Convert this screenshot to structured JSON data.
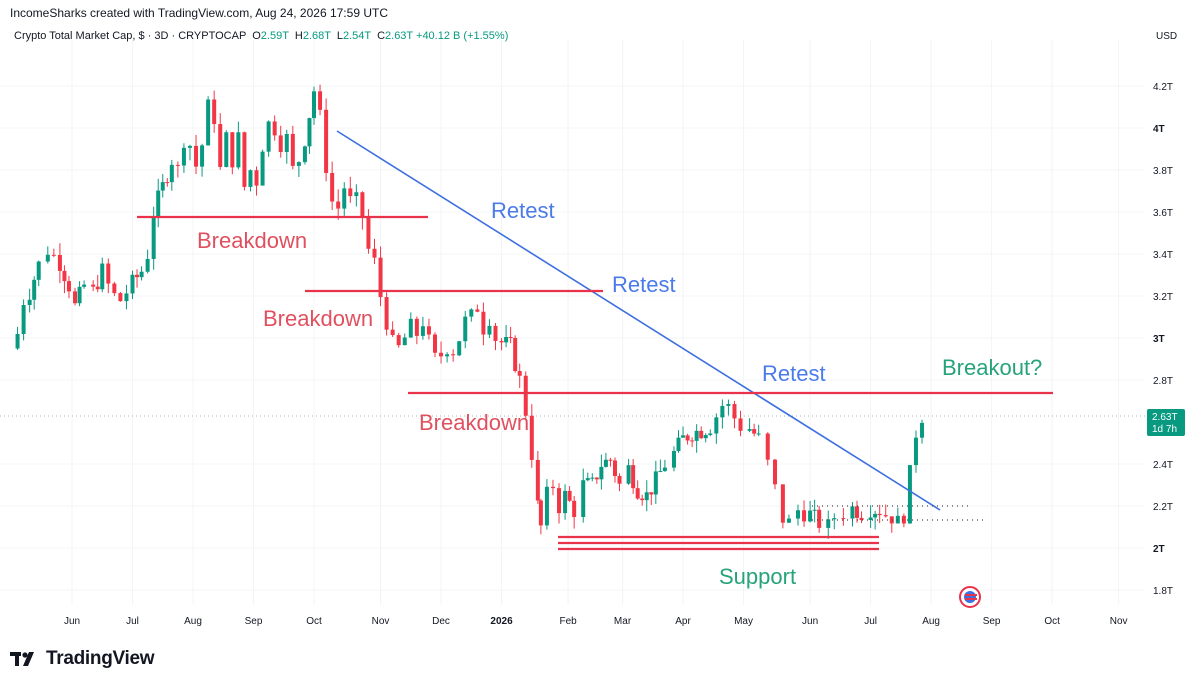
{
  "header": {
    "text": "IncomeSharks created with TradingView.com, Aug 24, 2026 17:59 UTC"
  },
  "legend": {
    "symbol": "Crypto Total Market Cap, $ · 3D · CRYPTOCAP",
    "o_label": "O",
    "o": "2.59T",
    "h_label": "H",
    "h": "2.68T",
    "l_label": "L",
    "l": "2.54T",
    "c_label": "C",
    "c": "2.63T",
    "change": "+40.12 B (+1.55%)"
  },
  "currency": "USD",
  "price_badge": {
    "price": "2.63T",
    "countdown": "1d 7h"
  },
  "logo": {
    "text": "TradingView"
  },
  "colors": {
    "up": "#089981",
    "down": "#f23645",
    "trend": "#3d6fe0",
    "level": "#e8334a",
    "retest": "#4a7be8",
    "breakdown": "#e0505f",
    "green_text": "#26a37a",
    "grid": "#f3f4f6"
  },
  "chart_data": {
    "type": "candlestick",
    "title": "Crypto Total Market Cap, $ · 3D · CRYPTOCAP",
    "y_unit": "T USD",
    "ylim": [
      1.75,
      4.3
    ],
    "y_ticks": [
      {
        "v": 4.2,
        "label": "4.2T",
        "bold": false
      },
      {
        "v": 4.0,
        "label": "4T",
        "bold": true
      },
      {
        "v": 3.8,
        "label": "3.8T",
        "bold": false
      },
      {
        "v": 3.6,
        "label": "3.6T",
        "bold": false
      },
      {
        "v": 3.4,
        "label": "3.4T",
        "bold": false
      },
      {
        "v": 3.2,
        "label": "3.2T",
        "bold": false
      },
      {
        "v": 3.0,
        "label": "3T",
        "bold": true
      },
      {
        "v": 2.8,
        "label": "2.8T",
        "bold": false
      },
      {
        "v": 2.4,
        "label": "2.4T",
        "bold": false
      },
      {
        "v": 2.2,
        "label": "2.2T",
        "bold": false
      },
      {
        "v": 2.0,
        "label": "2T",
        "bold": true
      },
      {
        "v": 1.8,
        "label": "1.8T",
        "bold": false
      }
    ],
    "x_ticks": [
      {
        "m": 5.0,
        "label": "Jun",
        "bold": false
      },
      {
        "m": 6.0,
        "label": "Jul",
        "bold": false
      },
      {
        "m": 7.0,
        "label": "Aug",
        "bold": false
      },
      {
        "m": 8.0,
        "label": "Sep",
        "bold": false
      },
      {
        "m": 9.0,
        "label": "Oct",
        "bold": false
      },
      {
        "m": 10.1,
        "label": "Nov",
        "bold": false
      },
      {
        "m": 11.1,
        "label": "Dec",
        "bold": false
      },
      {
        "m": 12.1,
        "label": "2026",
        "bold": true
      },
      {
        "m": 13.2,
        "label": "Feb",
        "bold": false
      },
      {
        "m": 14.1,
        "label": "Mar",
        "bold": false
      },
      {
        "m": 15.1,
        "label": "Apr",
        "bold": false
      },
      {
        "m": 16.1,
        "label": "May",
        "bold": false
      },
      {
        "m": 17.2,
        "label": "Jun",
        "bold": false
      },
      {
        "m": 18.2,
        "label": "Jul",
        "bold": false
      },
      {
        "m": 19.2,
        "label": "Aug",
        "bold": false
      },
      {
        "m": 20.2,
        "label": "Sep",
        "bold": false
      },
      {
        "m": 21.2,
        "label": "Oct",
        "bold": false
      },
      {
        "m": 22.3,
        "label": "Nov",
        "bold": false
      }
    ],
    "close_path": [
      [
        4.0,
        2.95
      ],
      [
        4.1,
        3.02
      ],
      [
        4.2,
        3.18
      ],
      [
        4.3,
        3.22
      ],
      [
        4.45,
        3.35
      ],
      [
        4.6,
        3.42
      ],
      [
        4.8,
        3.36
      ],
      [
        4.95,
        3.25
      ],
      [
        5.05,
        3.15
      ],
      [
        5.2,
        3.25
      ],
      [
        5.35,
        3.22
      ],
      [
        5.5,
        3.32
      ],
      [
        5.6,
        3.25
      ],
      [
        5.7,
        3.2
      ],
      [
        5.8,
        3.18
      ],
      [
        5.9,
        3.22
      ],
      [
        6.0,
        3.26
      ],
      [
        6.15,
        3.32
      ],
      [
        6.25,
        3.4
      ],
      [
        6.35,
        3.6
      ],
      [
        6.5,
        3.72
      ],
      [
        6.65,
        3.85
      ],
      [
        6.75,
        3.8
      ],
      [
        6.85,
        3.95
      ],
      [
        6.95,
        3.92
      ],
      [
        7.05,
        3.82
      ],
      [
        7.15,
        3.92
      ],
      [
        7.25,
        4.1
      ],
      [
        7.35,
        4.05
      ],
      [
        7.45,
        3.8
      ],
      [
        7.55,
        3.95
      ],
      [
        7.65,
        3.85
      ],
      [
        7.75,
        3.95
      ],
      [
        7.85,
        3.72
      ],
      [
        7.95,
        3.8
      ],
      [
        8.05,
        3.75
      ],
      [
        8.15,
        3.92
      ],
      [
        8.25,
        4.02
      ],
      [
        8.35,
        4.0
      ],
      [
        8.45,
        3.93
      ],
      [
        8.55,
        3.95
      ],
      [
        8.65,
        3.8
      ],
      [
        8.75,
        3.85
      ],
      [
        8.85,
        3.95
      ],
      [
        9.0,
        4.18
      ],
      [
        9.1,
        4.05
      ],
      [
        9.2,
        3.82
      ],
      [
        9.3,
        3.65
      ],
      [
        9.4,
        3.62
      ],
      [
        9.5,
        3.72
      ],
      [
        9.6,
        3.65
      ],
      [
        9.7,
        3.65
      ],
      [
        9.8,
        3.58
      ],
      [
        9.9,
        3.42
      ],
      [
        10.0,
        3.36
      ],
      [
        10.1,
        3.2
      ],
      [
        10.2,
        3.08
      ],
      [
        10.3,
        2.97
      ],
      [
        10.4,
        2.95
      ],
      [
        10.5,
        3.0
      ],
      [
        10.6,
        3.05
      ],
      [
        10.7,
        3.02
      ],
      [
        10.8,
        3.08
      ],
      [
        10.9,
        2.98
      ],
      [
        11.0,
        2.9
      ],
      [
        11.1,
        2.92
      ],
      [
        11.2,
        2.96
      ],
      [
        11.3,
        2.94
      ],
      [
        11.4,
        3.0
      ],
      [
        11.5,
        3.08
      ],
      [
        11.6,
        3.1
      ],
      [
        11.7,
        3.15
      ],
      [
        11.8,
        3.05
      ],
      [
        11.9,
        3.1
      ],
      [
        12.0,
        3.0
      ],
      [
        12.1,
        2.98
      ],
      [
        12.25,
        2.96
      ],
      [
        12.4,
        2.8
      ],
      [
        12.5,
        2.65
      ],
      [
        12.6,
        2.45
      ],
      [
        12.7,
        2.2
      ],
      [
        12.75,
        2.1
      ],
      [
        12.85,
        2.25
      ],
      [
        12.95,
        2.3
      ],
      [
        13.05,
        2.2
      ],
      [
        13.15,
        2.25
      ],
      [
        13.3,
        2.18
      ],
      [
        13.45,
        2.3
      ],
      [
        13.6,
        2.3
      ],
      [
        13.75,
        2.4
      ],
      [
        13.9,
        2.42
      ],
      [
        14.05,
        2.3
      ],
      [
        14.2,
        2.38
      ],
      [
        14.35,
        2.28
      ],
      [
        14.5,
        2.25
      ],
      [
        14.65,
        2.32
      ],
      [
        14.8,
        2.4
      ],
      [
        14.95,
        2.45
      ],
      [
        15.1,
        2.52
      ],
      [
        15.25,
        2.55
      ],
      [
        15.4,
        2.56
      ],
      [
        15.55,
        2.58
      ],
      [
        15.75,
        2.68
      ],
      [
        15.85,
        2.67
      ],
      [
        15.95,
        2.62
      ],
      [
        16.05,
        2.58
      ],
      [
        16.2,
        2.57
      ],
      [
        16.35,
        2.52
      ],
      [
        16.5,
        2.4
      ],
      [
        16.62,
        2.28
      ],
      [
        16.75,
        2.14
      ],
      [
        16.85,
        2.12
      ],
      [
        17.0,
        2.18
      ],
      [
        17.1,
        2.17
      ],
      [
        17.2,
        2.16
      ],
      [
        17.35,
        2.12
      ],
      [
        17.5,
        2.1
      ],
      [
        17.6,
        2.15
      ],
      [
        17.75,
        2.17
      ],
      [
        17.9,
        2.19
      ],
      [
        18.05,
        2.17
      ],
      [
        18.2,
        2.19
      ],
      [
        18.35,
        2.18
      ],
      [
        18.45,
        2.16
      ],
      [
        18.55,
        2.15
      ],
      [
        18.65,
        2.12
      ],
      [
        18.75,
        2.16
      ],
      [
        18.85,
        2.35
      ],
      [
        18.95,
        2.55
      ],
      [
        19.05,
        2.63
      ]
    ],
    "overlays": {
      "trendline": [
        [
          9.1,
          4.03
        ],
        [
          18.4,
          2.18
        ]
      ],
      "horizontal_levels": [
        {
          "from": 6.2,
          "to": 9.85,
          "y": 3.575,
          "label": "Breakdown"
        },
        {
          "from": 8.8,
          "to": 13.4,
          "y": 3.23,
          "label": "Retest"
        },
        {
          "from": 10.15,
          "to": 20.9,
          "y": 2.75,
          "label": "Breakdown"
        }
      ],
      "support_lines": [
        2.055,
        2.03,
        2.005
      ],
      "support_range": [
        12.75,
        18.3
      ],
      "last_price_line": 2.63
    }
  },
  "annotations": [
    {
      "name": "retest-label-1",
      "text": "Retest",
      "color": "retest"
    },
    {
      "name": "retest-label-2",
      "text": "Retest",
      "color": "retest"
    },
    {
      "name": "retest-label-3",
      "text": "Retest",
      "color": "retest"
    },
    {
      "name": "breakdown-label-1",
      "text": "Breakdown",
      "color": "breakdown"
    },
    {
      "name": "breakdown-label-2",
      "text": "Breakdown",
      "color": "breakdown"
    },
    {
      "name": "breakdown-label-3",
      "text": "Breakdown",
      "color": "breakdown"
    },
    {
      "name": "breakout-label",
      "text": "Breakout?",
      "color": "green_text"
    },
    {
      "name": "support-label",
      "text": "Support",
      "color": "green_text"
    }
  ]
}
